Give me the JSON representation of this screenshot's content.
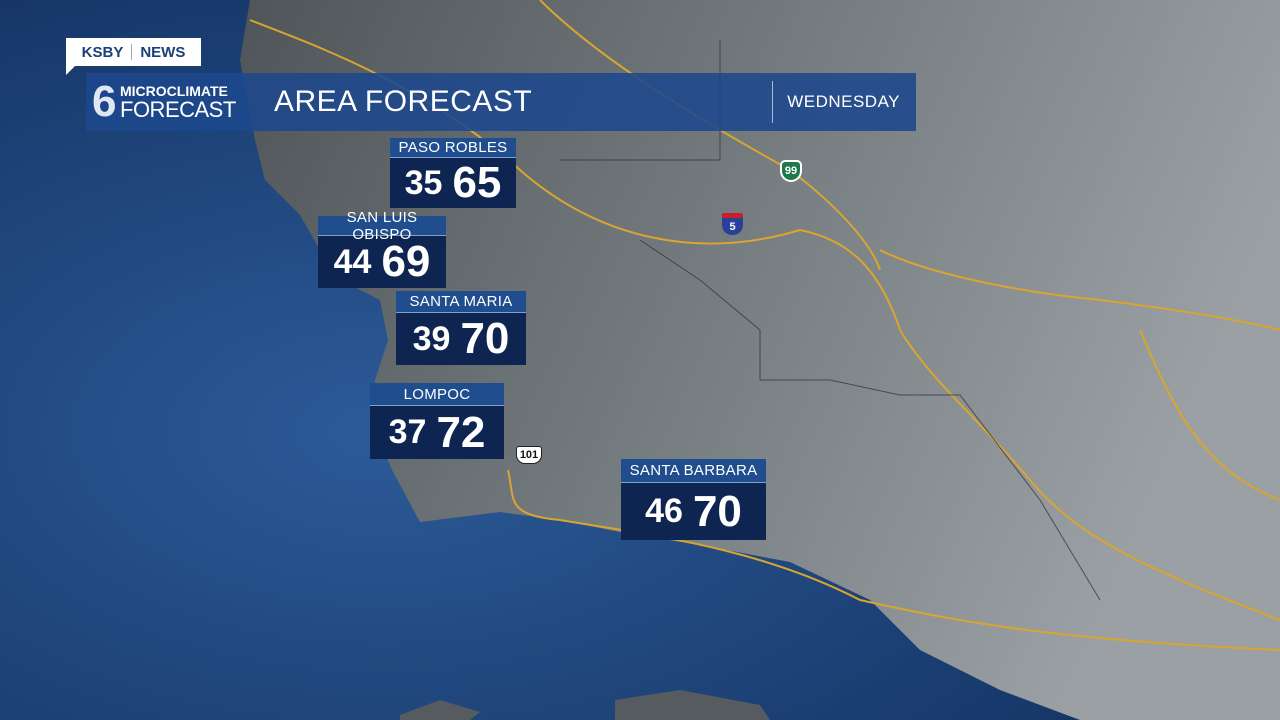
{
  "brand": {
    "station": "KSBY",
    "network": "NEWS",
    "logo_line1": "MICROCLIMATE",
    "logo_line2": "FORECAST",
    "logo_numeral": "6"
  },
  "header": {
    "title": "AREA FORECAST",
    "day": "WEDNESDAY"
  },
  "colors": {
    "ocean": "#1d4a86",
    "land": "#6c7276",
    "roads": "#d9a531",
    "panel": "#1f4d8e",
    "temp_box": "#0d2550"
  },
  "cities": [
    {
      "name": "PASO ROBLES",
      "low": "35",
      "high": "65"
    },
    {
      "name": "SAN LUIS OBISPO",
      "low": "44",
      "high": "69"
    },
    {
      "name": "SANTA MARIA",
      "low": "39",
      "high": "70"
    },
    {
      "name": "LOMPOC",
      "low": "37",
      "high": "72"
    },
    {
      "name": "SANTA BARBARA",
      "low": "46",
      "high": "70"
    }
  ],
  "highways": [
    {
      "label": "99",
      "icon": "state-route-shield"
    },
    {
      "label": "5",
      "icon": "interstate-shield"
    },
    {
      "label": "101",
      "icon": "us-route-shield"
    }
  ]
}
